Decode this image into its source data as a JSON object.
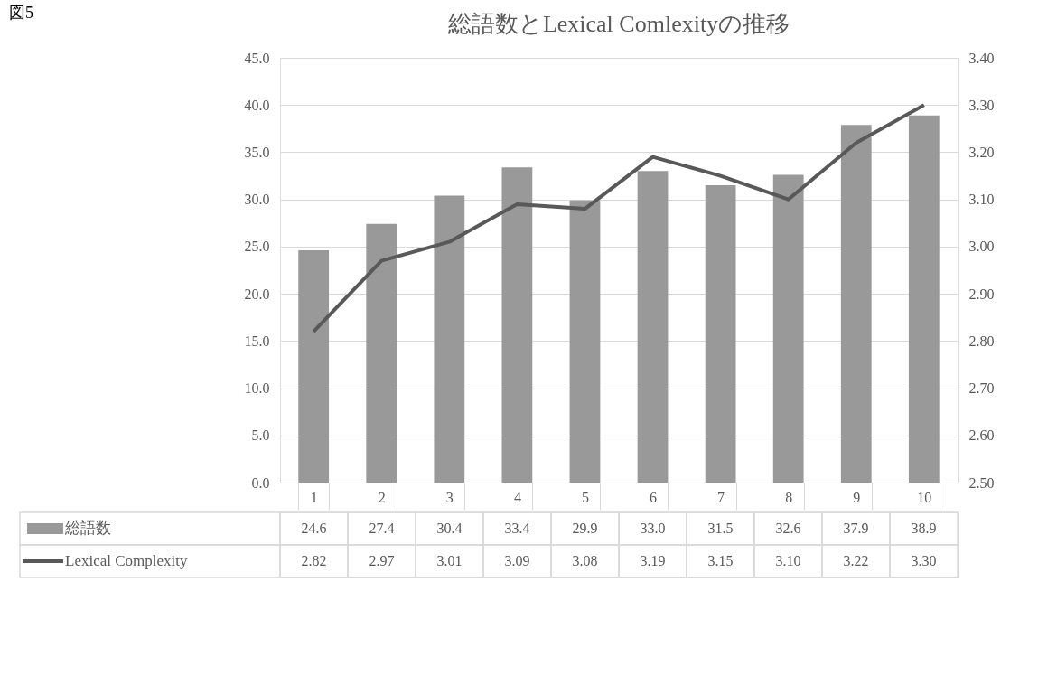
{
  "chart_data": {
    "type": "bar",
    "title": "総語数とLexical Comlexityの推移",
    "annotations": [
      "図5"
    ],
    "categories": [
      "1",
      "2",
      "3",
      "4",
      "5",
      "6",
      "7",
      "8",
      "9",
      "10"
    ],
    "series": [
      {
        "name": "総語数",
        "color": "#999999",
        "values": [
          24.6,
          27.4,
          30.4,
          33.4,
          29.9,
          33.0,
          31.5,
          32.6,
          37.9,
          38.9
        ],
        "value_labels": [
          "24.6",
          "27.4",
          "30.4",
          "33.4",
          "29.9",
          "33.0",
          "31.5",
          "32.6",
          "37.9",
          "38.9"
        ]
      },
      {
        "name": "Lexical Complexity",
        "type": "line",
        "axis": "y2",
        "color": "#595959",
        "values": [
          2.82,
          2.97,
          3.01,
          3.09,
          3.08,
          3.19,
          3.15,
          3.1,
          3.22,
          3.3
        ],
        "value_labels": [
          "2.82",
          "2.97",
          "3.01",
          "3.09",
          "3.08",
          "3.19",
          "3.15",
          "3.10",
          "3.22",
          "3.30"
        ]
      }
    ],
    "ylim": [
      0,
      45
    ],
    "yticks": [
      {
        "value": 0,
        "label": "0.0"
      },
      {
        "value": 5,
        "label": "5.0"
      },
      {
        "value": 10,
        "label": "10.0"
      },
      {
        "value": 15,
        "label": "15.0"
      },
      {
        "value": 20,
        "label": "20.0"
      },
      {
        "value": 25,
        "label": "25.0"
      },
      {
        "value": 30,
        "label": "30.0"
      },
      {
        "value": 35,
        "label": "35.0"
      },
      {
        "value": 40,
        "label": "40.0"
      },
      {
        "value": 45,
        "label": "45.0"
      }
    ],
    "y2lim": [
      2.5,
      3.4
    ],
    "y2ticks": [
      {
        "value": 2.5,
        "label": "2.50"
      },
      {
        "value": 2.6,
        "label": "2.60"
      },
      {
        "value": 2.7,
        "label": "2.70"
      },
      {
        "value": 2.8,
        "label": "2.80"
      },
      {
        "value": 2.9,
        "label": "2.90"
      },
      {
        "value": 3.0,
        "label": "3.00"
      },
      {
        "value": 3.1,
        "label": "3.10"
      },
      {
        "value": 3.2,
        "label": "3.20"
      },
      {
        "value": 3.3,
        "label": "3.30"
      },
      {
        "value": 3.4,
        "label": "3.40"
      }
    ],
    "grid": "y",
    "legend": "bottom",
    "line_style": "solid",
    "marker": "none"
  }
}
